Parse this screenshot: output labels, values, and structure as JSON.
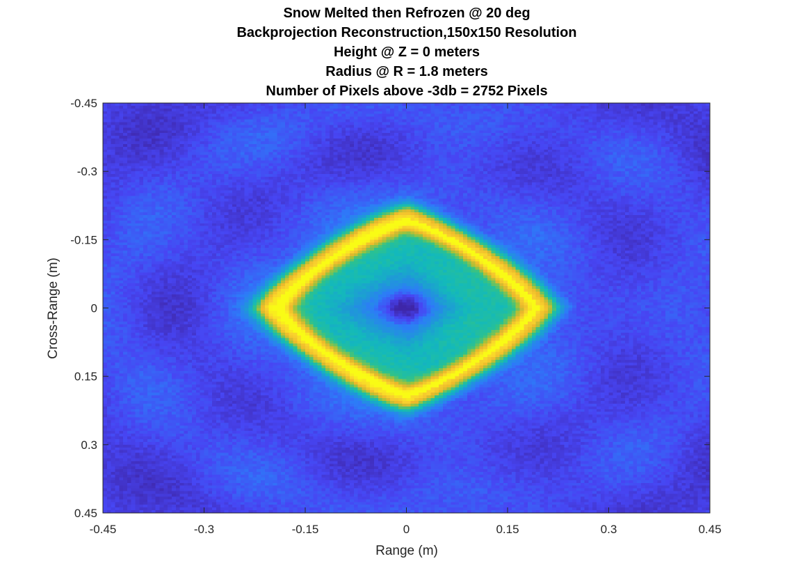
{
  "chart_data": {
    "type": "heatmap",
    "title_lines": [
      "Snow Melted then Refrozen @ 20 deg",
      "Backprojection Reconstruction,150x150 Resolution",
      "Height @ Z = 0 meters",
      "Radius @ R = 1.8 meters",
      "Number of Pixels above -3db = 2752 Pixels"
    ],
    "xlabel": "Range (m)",
    "ylabel": "Cross-Range (m)",
    "xlim": [
      -0.45,
      0.45
    ],
    "ylim": [
      -0.45,
      0.45
    ],
    "y_axis_direction": "reversed",
    "x_ticks": [
      -0.45,
      -0.3,
      -0.15,
      0,
      0.15,
      0.3,
      0.45
    ],
    "x_tick_labels": [
      "-0.45",
      "-0.3",
      "-0.15",
      "0",
      "0.15",
      "0.3",
      "0.45"
    ],
    "y_ticks": [
      -0.45,
      -0.3,
      -0.15,
      0,
      0.15,
      0.3,
      0.45
    ],
    "y_tick_labels": [
      "-0.45",
      "-0.3",
      "-0.15",
      "0",
      "0.15",
      "0.3",
      "0.45"
    ],
    "resolution": [
      150,
      150
    ],
    "colormap": "parula",
    "grid": false,
    "features": {
      "ring_shape": "diamond",
      "ring_half_width_x": 0.23,
      "ring_half_height_y": 0.23,
      "ring_intensity": "high (yellow)",
      "center": [
        0,
        0
      ],
      "center_intensity": "low (dark blue)",
      "background_intensity": "low (blue)"
    }
  },
  "colors": {
    "axis": "#262626",
    "colormap_stops": [
      "#3e26a8",
      "#4745f3",
      "#2d7bf8",
      "#1f98d8",
      "#13b9bb",
      "#2fc28a",
      "#a2c23a",
      "#ecb82b",
      "#f9d12e",
      "#f9fb15"
    ]
  }
}
